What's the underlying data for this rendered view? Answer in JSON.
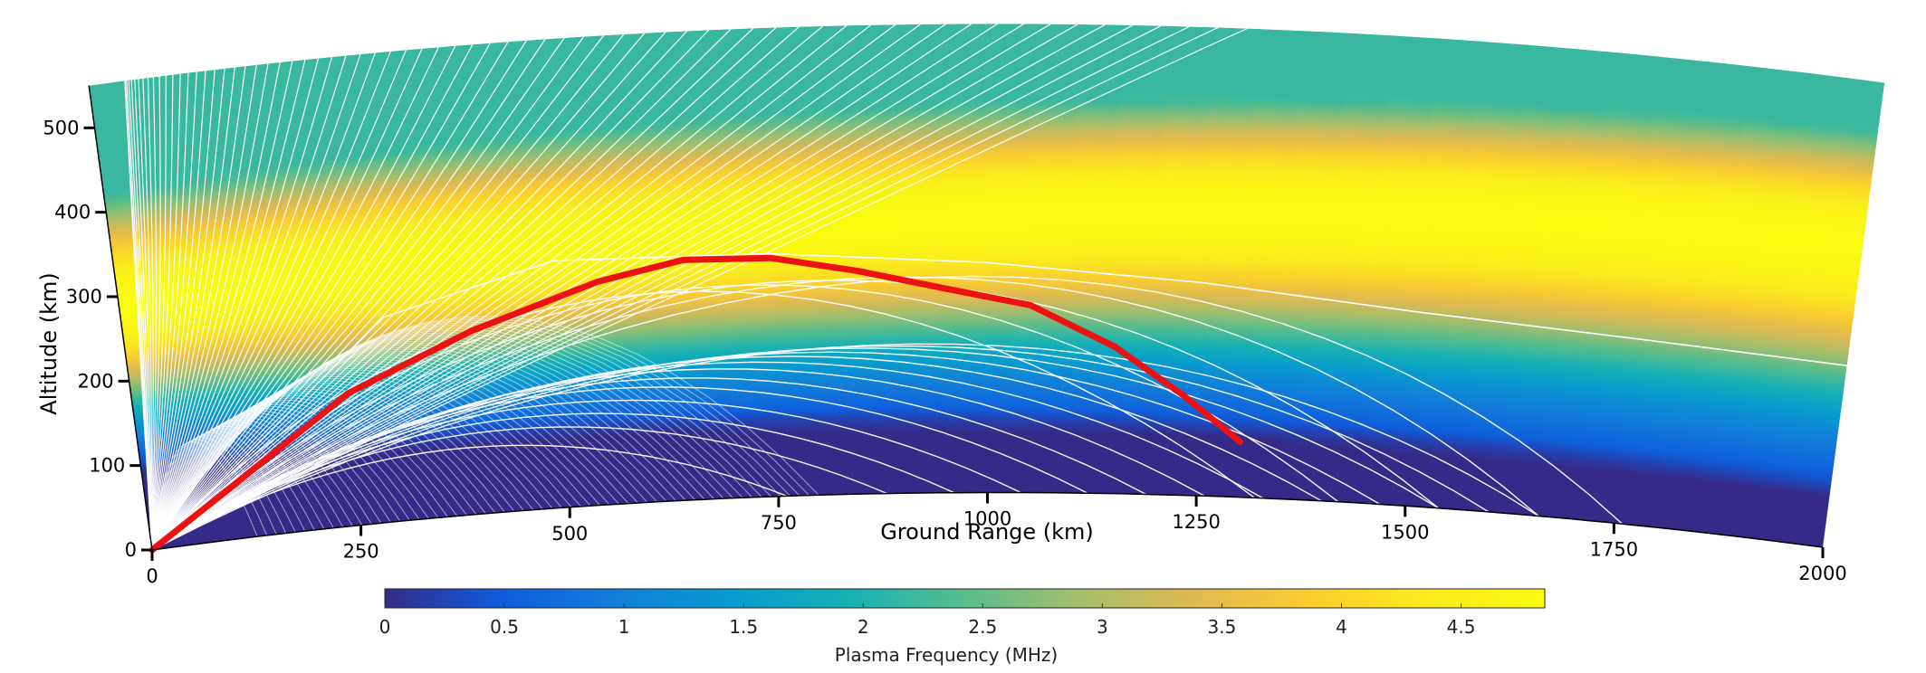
{
  "chart_data": {
    "type": "area",
    "title": "",
    "xlabel": "Ground Range (km)",
    "ylabel": "Altitude (km)",
    "xlim": [
      0,
      2000
    ],
    "ylim": [
      0,
      550
    ],
    "x_ticks": [
      "0",
      "250",
      "500",
      "750",
      "1000",
      "1250",
      "1500",
      "1750",
      "2000"
    ],
    "y_ticks": [
      "0",
      "100",
      "200",
      "300",
      "400",
      "500"
    ],
    "colorbar": {
      "label": "Plasma Frequency (MHz)",
      "range": [
        0,
        4.85
      ],
      "ticks": [
        "0",
        "0.5",
        "1",
        "1.5",
        "2",
        "2.5",
        "3",
        "3.5",
        "4",
        "4.5"
      ],
      "colormap": "parula"
    },
    "background_field": {
      "description_units": "plasma frequency in MHz",
      "layer_bottom_km_at_range_0": 90,
      "layer_bottom_km_at_range_2000": 60,
      "peak_height_km_at_range_0": 285,
      "peak_height_km_at_range_2000": 360,
      "peak_frequency_mhz": 4.85
    },
    "series": [
      {
        "name": "",
        "style": "thick-red",
        "color": "#ee1111",
        "points": [
          [
            0,
            0
          ],
          [
            100,
            60
          ],
          [
            250,
            155
          ],
          [
            400,
            215
          ],
          [
            550,
            262
          ],
          [
            650,
            282
          ],
          [
            750,
            280
          ],
          [
            850,
            262
          ],
          [
            950,
            240
          ],
          [
            1050,
            220
          ],
          [
            1150,
            172
          ],
          [
            1230,
            118
          ],
          [
            1300,
            65
          ]
        ]
      }
    ],
    "ray_fan": {
      "color": "#ffffff",
      "bottom_group": [
        {
          "apex_km": [
            390,
            90
          ],
          "land_km": 760
        },
        {
          "apex_km": [
            440,
            110
          ],
          "land_km": 880
        },
        {
          "apex_km": [
            480,
            125
          ],
          "land_km": 960
        },
        {
          "apex_km": [
            520,
            140
          ],
          "land_km": 1040
        },
        {
          "apex_km": [
            560,
            155
          ],
          "land_km": 1120
        },
        {
          "apex_km": [
            600,
            165
          ],
          "land_km": 1190
        },
        {
          "apex_km": [
            650,
            175
          ],
          "land_km": 1260
        },
        {
          "apex_km": [
            700,
            182
          ],
          "land_km": 1330
        },
        {
          "apex_km": [
            750,
            188
          ],
          "land_km": 1400
        },
        {
          "apex_km": [
            810,
            192
          ],
          "land_km": 1470
        },
        {
          "apex_km": [
            870,
            196
          ],
          "land_km": 1540
        },
        {
          "apex_km": [
            930,
            198
          ],
          "land_km": 1600
        },
        {
          "apex_km": [
            990,
            200
          ],
          "land_km": 1660
        }
      ],
      "upper_group": [
        {
          "apex_km": [
            600,
            280
          ],
          "land_km": 1320
        },
        {
          "apex_km": [
            700,
            285
          ],
          "land_km": 1420
        },
        {
          "apex_km": [
            820,
            288
          ],
          "land_km": 1540
        },
        {
          "apex_km": [
            950,
            290
          ],
          "land_km": 1660
        },
        {
          "apex_km": [
            1080,
            290
          ],
          "land_km": 1760
        }
      ],
      "ducted_ray": [
        [
          0,
          0
        ],
        [
          300,
          240
        ],
        [
          500,
          290
        ],
        [
          750,
          285
        ],
        [
          1000,
          270
        ],
        [
          1250,
          250
        ],
        [
          1500,
          228
        ],
        [
          1750,
          218
        ],
        [
          2000,
          215
        ]
      ],
      "escaping_count": 70
    }
  }
}
